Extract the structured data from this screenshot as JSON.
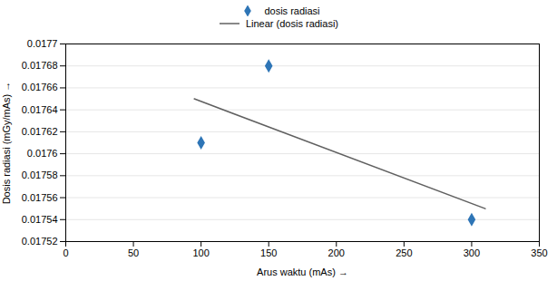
{
  "chart_data": {
    "type": "scatter",
    "xlabel": "Arus waktu (mAs)",
    "ylabel": "Dosis radiasi (mGy/mAs)",
    "series": [
      {
        "name": "dosis radiasi",
        "type": "scatter",
        "color": "#2E75B6",
        "marker": "diamond",
        "x": [
          100,
          150,
          300
        ],
        "values": [
          0.01761,
          0.01768,
          0.01754
        ]
      },
      {
        "name": "Linear (dosis radiasi)",
        "type": "line",
        "color": "#606060",
        "line_style": "solid",
        "x": [
          95,
          310
        ],
        "values": [
          0.01765,
          0.01755
        ]
      }
    ],
    "xlim": [
      0,
      350
    ],
    "ylim": [
      0.01752,
      0.0177
    ],
    "xticks": [
      0,
      50,
      100,
      150,
      200,
      250,
      300,
      350
    ],
    "yticks": [
      0.01752,
      0.01754,
      0.01756,
      0.01758,
      0.0176,
      0.01762,
      0.01764,
      0.01766,
      0.01768,
      0.0177
    ],
    "grid": "y",
    "legend": "top"
  }
}
